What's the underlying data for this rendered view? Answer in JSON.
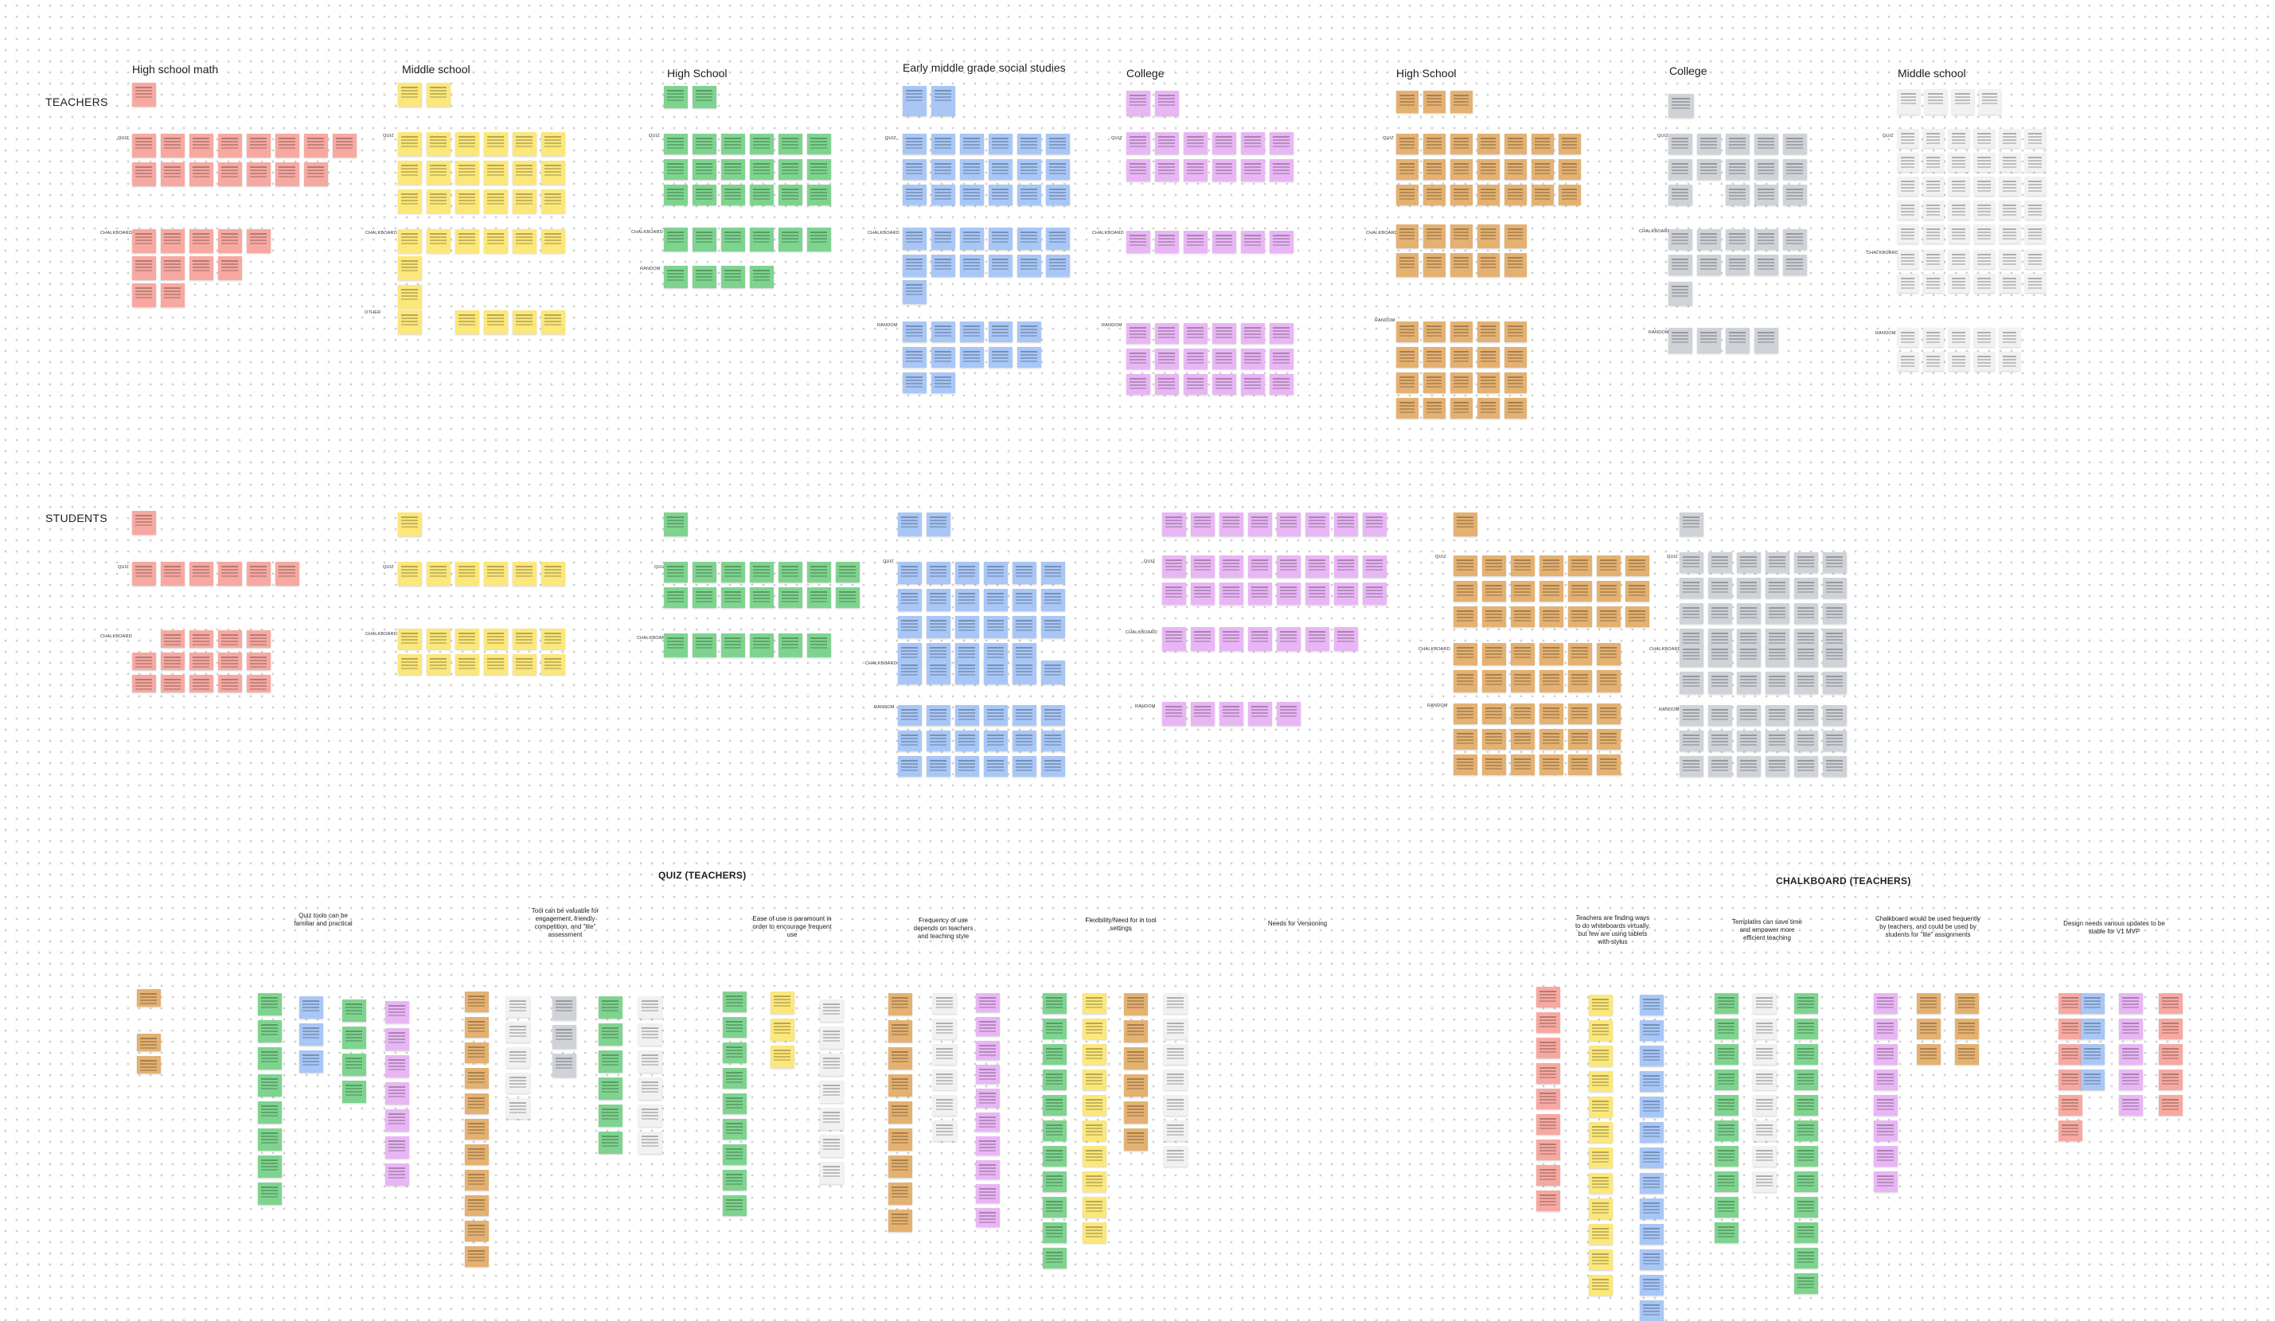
{
  "board": {
    "row_titles": {
      "teachers": "TEACHERS",
      "students": "STUDENTS"
    },
    "column_titles": [
      "High school math",
      "Middle school",
      "High School",
      "Early middle grade social studies",
      "College",
      "High School",
      "College",
      "Middle school"
    ],
    "sub_labels": {
      "quiz": "QUIZ",
      "chalkboard": "CHALKBOARD",
      "random": "RANDOM",
      "other": "OTHER"
    },
    "section_titles": {
      "quiz_teachers": "QUIZ (TEACHERS)",
      "chalkboard_teachers": "CHALKBOARD (TEACHERS)"
    },
    "quiz_clusters": [
      "Quiz tools can be familiar and practical",
      "Tool can be valuable for engagement, friendly competition, and \"lite\" assessment",
      "Ease of use is paramount in order to encourage frequent use",
      "Frequency of use depends on teachers and teaching style",
      "Flexibility/Need for in tool settings",
      "Needs for Versioning"
    ],
    "chalkboard_clusters": [
      "Teachers are finding ways to do whiteboards virtually, but few are using tablets with stylus",
      "Templates can save time and empower more efficient teaching",
      "Chalkboard would be used frequently by teachers, and could be used by students for \"lite\" assignments",
      "Design needs various updates to be stable for V1 MVP"
    ],
    "colors": {
      "red": "#f7a9a1",
      "yellow": "#fce77a",
      "green": "#7ed48f",
      "blue": "#a8c7f7",
      "purple": "#e9b6f5",
      "orange": "#e4b171",
      "gray": "#cfd3d8",
      "white": "#f1f1f1",
      "link_blue": "#2f6ad8"
    }
  }
}
